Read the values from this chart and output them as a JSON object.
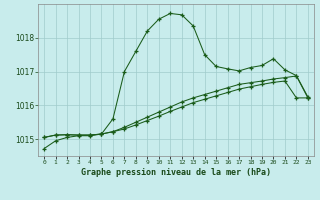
{
  "title": "Graphe pression niveau de la mer (hPa)",
  "background_color": "#c8ecec",
  "grid_color": "#a0cccc",
  "line_color": "#1a5c1a",
  "x_labels": [
    "0",
    "1",
    "2",
    "3",
    "4",
    "5",
    "6",
    "7",
    "8",
    "9",
    "10",
    "11",
    "12",
    "13",
    "14",
    "15",
    "16",
    "17",
    "18",
    "19",
    "20",
    "21",
    "22",
    "23"
  ],
  "xlim": [
    -0.5,
    23.5
  ],
  "ylim": [
    1014.5,
    1019.0
  ],
  "yticks": [
    1015,
    1016,
    1017,
    1018
  ],
  "series1": [
    1014.72,
    1014.95,
    1015.05,
    1015.1,
    1015.1,
    1015.15,
    1015.6,
    1017.0,
    1017.6,
    1018.2,
    1018.55,
    1018.72,
    1018.68,
    1018.35,
    1017.5,
    1017.15,
    1017.08,
    1017.02,
    1017.12,
    1017.18,
    1017.38,
    1017.05,
    1016.88,
    1016.25
  ],
  "series2": [
    1015.05,
    1015.12,
    1015.13,
    1015.12,
    1015.12,
    1015.15,
    1015.22,
    1015.3,
    1015.42,
    1015.55,
    1015.68,
    1015.82,
    1015.95,
    1016.08,
    1016.18,
    1016.28,
    1016.38,
    1016.48,
    1016.55,
    1016.62,
    1016.68,
    1016.72,
    1016.22,
    1016.22
  ],
  "series3": [
    1015.05,
    1015.12,
    1015.13,
    1015.12,
    1015.12,
    1015.15,
    1015.22,
    1015.35,
    1015.5,
    1015.65,
    1015.8,
    1015.95,
    1016.1,
    1016.22,
    1016.32,
    1016.42,
    1016.52,
    1016.62,
    1016.67,
    1016.72,
    1016.78,
    1016.82,
    1016.87,
    1016.22
  ]
}
